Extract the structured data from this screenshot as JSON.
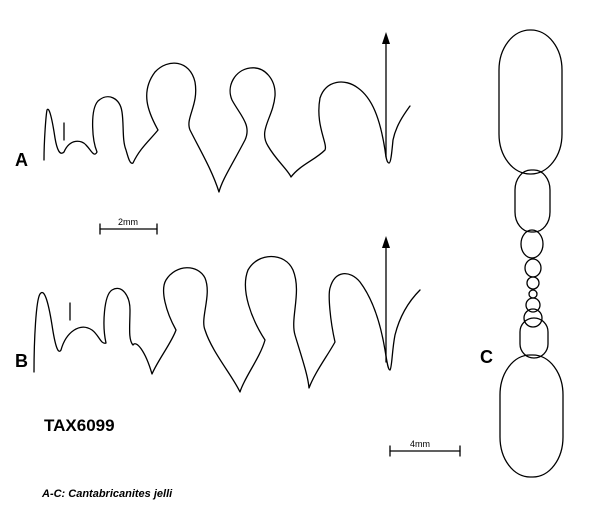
{
  "panels": {
    "a_label": "A",
    "b_label": "B",
    "c_label": "C"
  },
  "scale_bars": {
    "suture_scale": "2mm",
    "section_scale": "4mm"
  },
  "specimen_id": "TAX6099",
  "caption": "A-C: Cantabricanites jelli",
  "colors": {
    "ink": "#000000",
    "background": "#ffffff"
  }
}
